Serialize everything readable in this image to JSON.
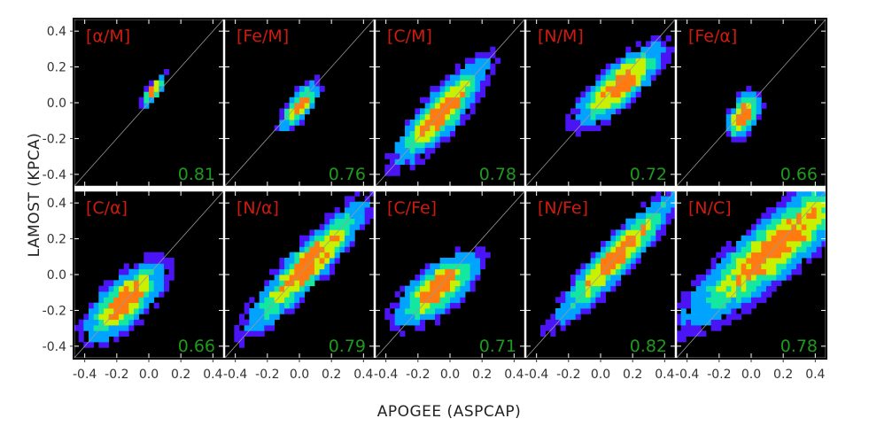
{
  "chart_data": {
    "type": "heatmap",
    "xlabel": "APOGEE (ASPCAP)",
    "ylabel": "LAMOST (KPCA)",
    "xlim": [
      -0.47,
      0.47
    ],
    "ylim": [
      -0.47,
      0.47
    ],
    "xticks": [
      "-0.4",
      "-0.2",
      "0.0",
      "0.2",
      "0.4"
    ],
    "yticks": [
      "-0.4",
      "-0.2",
      "0.0",
      "0.2",
      "0.4"
    ],
    "xtick_values": [
      -0.4,
      -0.2,
      0.0,
      0.2,
      0.4
    ],
    "ytick_values": [
      -0.4,
      -0.2,
      0.0,
      0.2,
      0.4
    ],
    "rows": 2,
    "cols": 5,
    "one_to_one_line": true,
    "colormap": [
      "#4b14f5",
      "#00a4ff",
      "#14e8a0",
      "#c8f000",
      "#ff7a10"
    ],
    "background_color": "#000000",
    "label_color": "#d01a10",
    "corr_color": "#1e9a1e",
    "panels": [
      {
        "label": "[α/M]",
        "corr": "0.81",
        "center": [
          0.03,
          0.07
        ],
        "spread": [
          0.06,
          0.02
        ],
        "slope": 1.2
      },
      {
        "label": "[Fe/M]",
        "corr": "0.76",
        "center": [
          0.0,
          -0.02
        ],
        "spread": [
          0.09,
          0.035
        ],
        "slope": 1.15
      },
      {
        "label": "[C/M]",
        "corr": "0.78",
        "center": [
          -0.05,
          -0.05
        ],
        "spread": [
          0.22,
          0.06
        ],
        "slope": 1.0
      },
      {
        "label": "[N/M]",
        "corr": "0.72",
        "center": [
          0.12,
          0.1
        ],
        "spread": [
          0.19,
          0.06
        ],
        "slope": 0.8
      },
      {
        "label": "[Fe/α]",
        "corr": "0.66",
        "center": [
          -0.05,
          -0.07
        ],
        "spread": [
          0.08,
          0.045
        ],
        "slope": 1.5
      },
      {
        "label": "[C/α]",
        "corr": "0.66",
        "center": [
          -0.15,
          -0.15
        ],
        "spread": [
          0.17,
          0.07
        ],
        "slope": 0.85
      },
      {
        "label": "[N/α]",
        "corr": "0.79",
        "center": [
          0.05,
          0.05
        ],
        "spread": [
          0.28,
          0.06
        ],
        "slope": 0.95
      },
      {
        "label": "[C/Fe]",
        "corr": "0.71",
        "center": [
          -0.08,
          -0.08
        ],
        "spread": [
          0.17,
          0.07
        ],
        "slope": 0.7
      },
      {
        "label": "[N/Fe]",
        "corr": "0.82",
        "center": [
          0.1,
          0.1
        ],
        "spread": [
          0.28,
          0.055
        ],
        "slope": 0.95
      },
      {
        "label": "[N/C]",
        "corr": "0.78",
        "center": [
          0.15,
          0.15
        ],
        "spread": [
          0.38,
          0.09
        ],
        "slope": 0.75
      }
    ]
  }
}
